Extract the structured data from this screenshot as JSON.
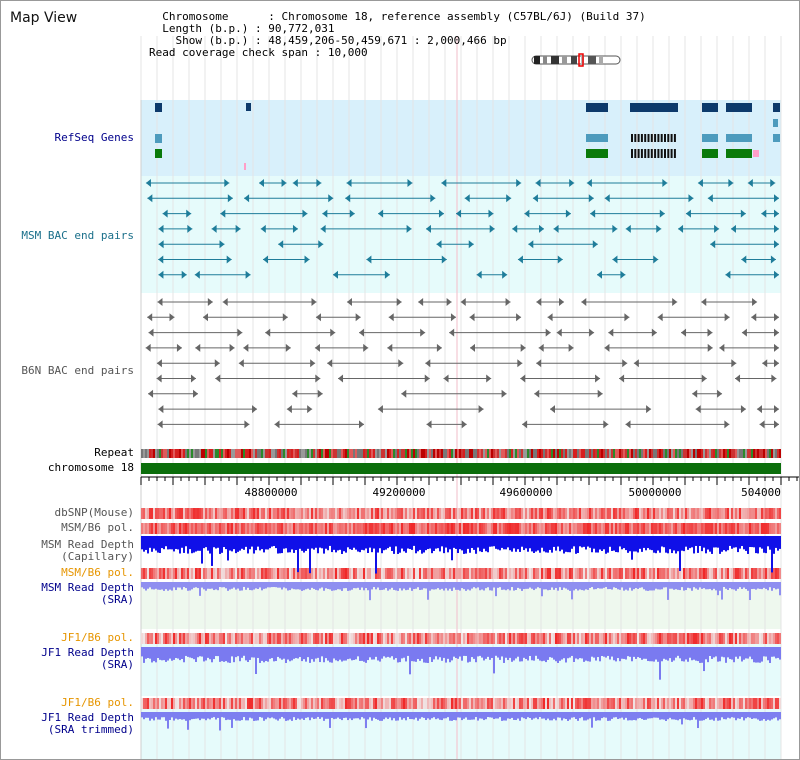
{
  "header": {
    "title": "Map View",
    "chromosome_label": "Chromosome",
    "chromosome_value": "Chromosome 18, reference assembly (C57BL/6J) (Build 37)",
    "length_label": "Length (b.p.)",
    "length_value": "90,772,031",
    "show_label": "Show (b.p.)",
    "show_value": "48,459,206-50,459,671 : 2,000,466 bp",
    "coverage_label": "Read coverage check span",
    "coverage_value": "10,000"
  },
  "tracks": {
    "refseq": "RefSeq Genes",
    "msm_bac": "MSM BAC end pairs",
    "b6n_bac": "B6N BAC end pairs",
    "repeat": "Repeat",
    "chromosome": "chromosome 18",
    "dbsnp": "dbSNP(Mouse)",
    "msm_pol_1": "MSM/B6 pol.",
    "msm_depth_cap_1": "MSM Read Depth",
    "msm_depth_cap_2": "(Capillary)",
    "msm_pol_2": "MSM/B6 pol.",
    "msm_depth_sra_1": "MSM Read Depth",
    "msm_depth_sra_2": "(SRA)",
    "jf1_pol_1": "JF1/B6 pol.",
    "jf1_depth_sra_1": "JF1 Read Depth",
    "jf1_depth_sra_2": "(SRA)",
    "jf1_pol_2": "JF1/B6 pol.",
    "jf1_depth_trim_1": "JF1 Read Depth",
    "jf1_depth_trim_2": "(SRA trimmed)"
  },
  "axis": {
    "ticks": [
      "48800000",
      "49200000",
      "49600000",
      "50000000",
      "504000"
    ]
  },
  "colors": {
    "refseq_bg": "#d8f0fb",
    "bac_bg": "#e6fbfb",
    "dark_gene": "#0d3a6b",
    "mid_gene": "#4d9bbd",
    "green_gene": "#0a7a0a",
    "chromosome_bar": "#0b6e0b",
    "msm_bac_line": "#1f7d9a",
    "b6n_bac_line": "#666666",
    "label_dark_blue": "#00008b",
    "label_teal": "#1a6f8a",
    "label_orange": "#e69500",
    "label_gray": "#555555"
  }
}
